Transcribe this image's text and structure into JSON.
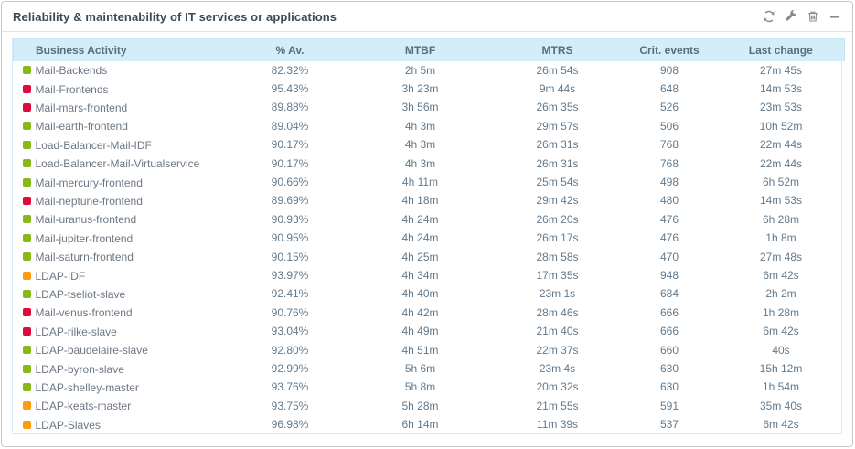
{
  "widget": {
    "title": "Reliability & maintenability of IT services or applications",
    "toolbar": [
      {
        "name": "refresh",
        "icon": "refresh-icon"
      },
      {
        "name": "configure",
        "icon": "wrench-icon"
      },
      {
        "name": "delete",
        "icon": "trash-icon"
      },
      {
        "name": "minimize",
        "icon": "minimize-icon"
      }
    ]
  },
  "status_colors": {
    "ok": "#88b917",
    "warning": "#ff9a13",
    "critical": "#e00b3d"
  },
  "table": {
    "columns": [
      "Business Activity",
      "% Av.",
      "MTBF",
      "MTRS",
      "Crit. events",
      "Last change"
    ],
    "rows": [
      {
        "status": "ok",
        "activity": "Mail-Backends",
        "availability": "82.32%",
        "mtbf": "2h 5m",
        "mtrs": "26m 54s",
        "crit_events": "908",
        "last_change": "27m 45s"
      },
      {
        "status": "critical",
        "activity": "Mail-Frontends",
        "availability": "95.43%",
        "mtbf": "3h 23m",
        "mtrs": "9m 44s",
        "crit_events": "648",
        "last_change": "14m 53s"
      },
      {
        "status": "critical",
        "activity": "Mail-mars-frontend",
        "availability": "89.88%",
        "mtbf": "3h 56m",
        "mtrs": "26m 35s",
        "crit_events": "526",
        "last_change": "23m 53s"
      },
      {
        "status": "ok",
        "activity": "Mail-earth-frontend",
        "availability": "89.04%",
        "mtbf": "4h 3m",
        "mtrs": "29m 57s",
        "crit_events": "506",
        "last_change": "10h 52m"
      },
      {
        "status": "ok",
        "activity": "Load-Balancer-Mail-IDF",
        "availability": "90.17%",
        "mtbf": "4h 3m",
        "mtrs": "26m 31s",
        "crit_events": "768",
        "last_change": "22m 44s"
      },
      {
        "status": "ok",
        "activity": "Load-Balancer-Mail-Virtualservice",
        "availability": "90.17%",
        "mtbf": "4h 3m",
        "mtrs": "26m 31s",
        "crit_events": "768",
        "last_change": "22m 44s"
      },
      {
        "status": "ok",
        "activity": "Mail-mercury-frontend",
        "availability": "90.66%",
        "mtbf": "4h 11m",
        "mtrs": "25m 54s",
        "crit_events": "498",
        "last_change": "6h 52m"
      },
      {
        "status": "critical",
        "activity": "Mail-neptune-frontend",
        "availability": "89.69%",
        "mtbf": "4h 18m",
        "mtrs": "29m 42s",
        "crit_events": "480",
        "last_change": "14m 53s"
      },
      {
        "status": "ok",
        "activity": "Mail-uranus-frontend",
        "availability": "90.93%",
        "mtbf": "4h 24m",
        "mtrs": "26m 20s",
        "crit_events": "476",
        "last_change": "6h 28m"
      },
      {
        "status": "ok",
        "activity": "Mail-jupiter-frontend",
        "availability": "90.95%",
        "mtbf": "4h 24m",
        "mtrs": "26m 17s",
        "crit_events": "476",
        "last_change": "1h 8m"
      },
      {
        "status": "ok",
        "activity": "Mail-saturn-frontend",
        "availability": "90.15%",
        "mtbf": "4h 25m",
        "mtrs": "28m 58s",
        "crit_events": "470",
        "last_change": "27m 48s"
      },
      {
        "status": "warning",
        "activity": "LDAP-IDF",
        "availability": "93.97%",
        "mtbf": "4h 34m",
        "mtrs": "17m 35s",
        "crit_events": "948",
        "last_change": "6m 42s"
      },
      {
        "status": "ok",
        "activity": "LDAP-tseliot-slave",
        "availability": "92.41%",
        "mtbf": "4h 40m",
        "mtrs": "23m 1s",
        "crit_events": "684",
        "last_change": "2h 2m"
      },
      {
        "status": "critical",
        "activity": "Mail-venus-frontend",
        "availability": "90.76%",
        "mtbf": "4h 42m",
        "mtrs": "28m 46s",
        "crit_events": "666",
        "last_change": "1h 28m"
      },
      {
        "status": "critical",
        "activity": "LDAP-rilke-slave",
        "availability": "93.04%",
        "mtbf": "4h 49m",
        "mtrs": "21m 40s",
        "crit_events": "666",
        "last_change": "6m 42s"
      },
      {
        "status": "ok",
        "activity": "LDAP-baudelaire-slave",
        "availability": "92.80%",
        "mtbf": "4h 51m",
        "mtrs": "22m 37s",
        "crit_events": "660",
        "last_change": "40s"
      },
      {
        "status": "ok",
        "activity": "LDAP-byron-slave",
        "availability": "92.99%",
        "mtbf": "5h 6m",
        "mtrs": "23m 4s",
        "crit_events": "630",
        "last_change": "15h 12m"
      },
      {
        "status": "ok",
        "activity": "LDAP-shelley-master",
        "availability": "93.76%",
        "mtbf": "5h 8m",
        "mtrs": "20m 32s",
        "crit_events": "630",
        "last_change": "1h 54m"
      },
      {
        "status": "warning",
        "activity": "LDAP-keats-master",
        "availability": "93.75%",
        "mtbf": "5h 28m",
        "mtrs": "21m 55s",
        "crit_events": "591",
        "last_change": "35m 40s"
      },
      {
        "status": "warning",
        "activity": "LDAP-Slaves",
        "availability": "96.98%",
        "mtbf": "6h 14m",
        "mtrs": "11m 39s",
        "crit_events": "537",
        "last_change": "6m 42s"
      }
    ]
  }
}
